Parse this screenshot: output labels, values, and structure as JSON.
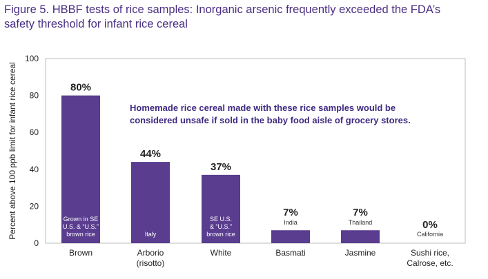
{
  "title_line1": "Figure 5. HBBF tests of rice samples: Inorganic arsenic frequently exceeded the FDA’s",
  "title_line2": "safety threshold for infant rice cereal",
  "chart_data": {
    "type": "bar",
    "ylabel": "Percent above 100 ppb limit for infant rice cereal",
    "ylim": [
      0,
      100
    ],
    "yticks": [
      0,
      20,
      40,
      60,
      80,
      100
    ],
    "grid": false,
    "bar_color": "#5a3d8f",
    "categories": [
      [
        "Brown"
      ],
      [
        "Arborio",
        "(risotto)"
      ],
      [
        "White"
      ],
      [
        "Basmati"
      ],
      [
        "Jasmine"
      ],
      [
        "Sushi rice,",
        "Calrose, etc."
      ]
    ],
    "values": [
      80,
      44,
      37,
      7,
      7,
      0
    ],
    "value_labels": [
      "80%",
      "44%",
      "37%",
      "7%",
      "7%",
      "0%"
    ],
    "origin_labels": [
      [
        "Grown in SE",
        "U.S. & “U.S.”",
        "brown rice"
      ],
      [
        "Italy"
      ],
      [
        "SE U.S.",
        "& “U.S.”",
        "brown rice"
      ],
      [
        "India"
      ],
      [
        "Thailand"
      ],
      [
        "California"
      ]
    ],
    "annotation": [
      "Homemade rice cereal made with these rice samples would be",
      "considered unsafe if sold in the baby food aisle of grocery stores."
    ]
  }
}
